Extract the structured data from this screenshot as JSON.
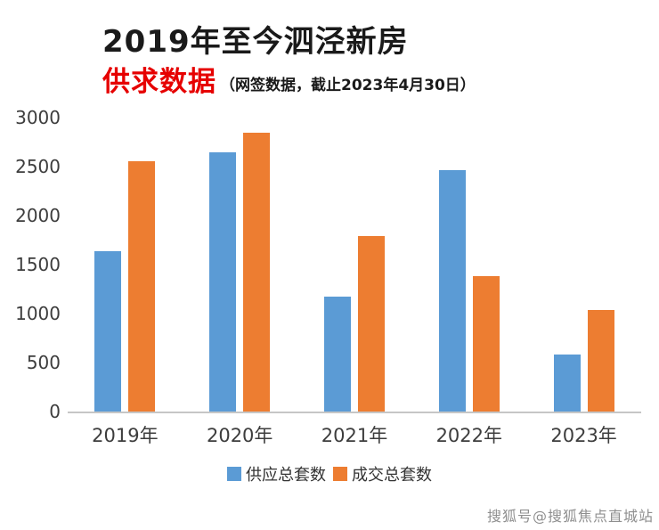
{
  "header": {
    "title_line1": "2019年至今泗泾新房",
    "title_line2_red": "供求数据",
    "title_line2_note": "（网签数据，截止2023年4月30日）"
  },
  "chart_data": {
    "type": "bar",
    "title": "2019年至今泗泾新房供求数据",
    "categories": [
      "2019年",
      "2020年",
      "2021年",
      "2022年",
      "2023年"
    ],
    "series": [
      {
        "name": "供应总套数",
        "color": "#5B9BD5",
        "values": [
          1630,
          2640,
          1170,
          2460,
          580
        ]
      },
      {
        "name": "成交总套数",
        "color": "#ED7D31",
        "values": [
          2550,
          2840,
          1790,
          1380,
          1030
        ]
      }
    ],
    "ylim": [
      0,
      3000
    ],
    "yticks": [
      0,
      500,
      1000,
      1500,
      2000,
      2500,
      3000
    ],
    "grid": false,
    "legend_position": "bottom"
  },
  "watermark": "搜狐号@搜狐焦点直城站"
}
